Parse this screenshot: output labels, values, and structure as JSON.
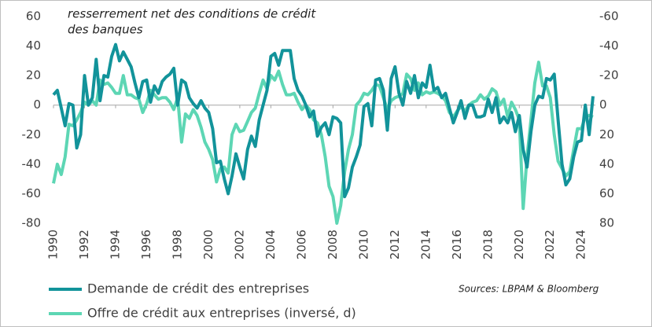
{
  "chart_data": {
    "type": "line",
    "annotation": [
      "resserrement net des conditions de crédit",
      "des banques"
    ],
    "source": "Sources: LBPAM & Bloomberg",
    "x": [
      1990,
      1990.25,
      1990.5,
      1990.75,
      1991,
      1991.25,
      1991.5,
      1991.75,
      1992,
      1992.25,
      1992.5,
      1992.75,
      1993,
      1993.25,
      1993.5,
      1993.75,
      1994,
      1994.25,
      1994.5,
      1994.75,
      1995,
      1995.25,
      1995.5,
      1995.75,
      1996,
      1996.25,
      1996.5,
      1996.75,
      1997,
      1997.25,
      1997.5,
      1997.75,
      1998,
      1998.25,
      1998.5,
      1998.75,
      1999,
      1999.25,
      1999.5,
      1999.75,
      2000,
      2000.25,
      2000.5,
      2000.75,
      2001,
      2001.25,
      2001.5,
      2001.75,
      2002,
      2002.25,
      2002.5,
      2002.75,
      2003,
      2003.25,
      2003.5,
      2003.75,
      2004,
      2004.25,
      2004.5,
      2004.75,
      2005,
      2005.25,
      2005.5,
      2005.75,
      2006,
      2006.25,
      2006.5,
      2006.75,
      2007,
      2007.25,
      2007.5,
      2007.75,
      2008,
      2008.25,
      2008.5,
      2008.75,
      2009,
      2009.25,
      2009.5,
      2009.75,
      2010,
      2010.25,
      2010.5,
      2010.75,
      2011,
      2011.25,
      2011.5,
      2011.75,
      2012,
      2012.25,
      2012.5,
      2012.75,
      2013,
      2013.25,
      2013.5,
      2013.75,
      2014,
      2014.25,
      2014.5,
      2014.75,
      2015,
      2015.25,
      2015.5,
      2015.75,
      2016,
      2016.25,
      2016.5,
      2016.75,
      2017,
      2017.25,
      2017.5,
      2017.75,
      2018,
      2018.25,
      2018.5,
      2018.75,
      2019,
      2019.25,
      2019.5,
      2019.75,
      2020,
      2020.25,
      2020.5,
      2020.75,
      2021,
      2021.25,
      2021.5,
      2021.75,
      2022,
      2022.25,
      2022.5,
      2022.75,
      2023,
      2023.25,
      2023.5,
      2023.75,
      2024,
      2024.25,
      2024.5,
      2024.75
    ],
    "series": [
      {
        "name": "Demande de crédit des entreprises",
        "color": "#12939a",
        "axis": "y",
        "values": [
          7,
          10,
          -2,
          -14,
          1,
          0,
          -29,
          -20,
          20,
          0,
          5,
          31,
          3,
          20,
          19,
          33,
          41,
          30,
          36,
          31,
          26,
          15,
          5,
          16,
          17,
          2,
          13,
          8,
          16,
          19,
          21,
          25,
          0,
          17,
          15,
          5,
          1,
          -2,
          3,
          -2,
          -5,
          -16,
          -39,
          -38,
          -50,
          -60,
          -48,
          -33,
          -42,
          -50,
          -30,
          -21,
          -28,
          -10,
          0,
          10,
          33,
          35,
          27,
          37,
          37,
          37,
          18,
          10,
          6,
          0,
          -8,
          -4,
          -21,
          -15,
          -12,
          -20,
          -8,
          -9,
          -12,
          -62,
          -56,
          -42,
          -35,
          -27,
          -1,
          1,
          -14,
          17,
          18,
          10,
          -17,
          18,
          26,
          8,
          0,
          16,
          8,
          20,
          5,
          15,
          12,
          27,
          10,
          12,
          5,
          8,
          -2,
          -12,
          -5,
          3,
          -9,
          0,
          0,
          -8,
          -8,
          -7,
          4,
          -5,
          5,
          -12,
          -8,
          -12,
          -5,
          -18,
          -7,
          -30,
          -42,
          -18,
          0,
          6,
          5,
          18,
          17,
          21,
          -10,
          -40,
          -54,
          -50,
          -35,
          -25,
          -24,
          0,
          -20,
          6
        ]
      },
      {
        "name": "Offre de crédit aux entreprises (inversé, d)",
        "color": "#5dd6b4",
        "axis": "y2",
        "values": [
          53,
          40,
          47,
          35,
          13,
          14,
          10,
          5,
          -2,
          0,
          -3,
          0,
          -17,
          -14,
          -15,
          -12,
          -8,
          -8,
          -20,
          -7,
          -7,
          -5,
          -4,
          5,
          -1,
          -10,
          -7,
          -4,
          -5,
          -5,
          -2,
          3,
          -5,
          25,
          6,
          9,
          3,
          7,
          15,
          25,
          30,
          37,
          52,
          43,
          42,
          46,
          20,
          13,
          18,
          17,
          11,
          5,
          2,
          -8,
          -17,
          -11,
          -20,
          -17,
          -23,
          -14,
          -7,
          -7,
          -8,
          -2,
          3,
          0,
          3,
          10,
          12,
          20,
          35,
          55,
          62,
          80,
          68,
          45,
          30,
          20,
          0,
          -3,
          -8,
          -7,
          -10,
          -14,
          -13,
          -5,
          3,
          -3,
          -5,
          -6,
          -8,
          -21,
          -18,
          -10,
          -15,
          -7,
          -9,
          -8,
          -9,
          -8,
          -6,
          -3,
          5,
          8,
          4,
          1,
          4,
          0,
          -2,
          -3,
          -7,
          -4,
          -6,
          -11,
          -9,
          0,
          -4,
          8,
          -2,
          3,
          10,
          70,
          35,
          10,
          -15,
          -29,
          -13,
          -13,
          -5,
          20,
          38,
          43,
          48,
          45,
          30,
          16,
          16,
          8,
          7,
          8
        ]
      }
    ],
    "xlim": [
      1990,
      2024.9
    ],
    "xticks": [
      1990,
      1992,
      1994,
      1996,
      1998,
      2000,
      2002,
      2004,
      2006,
      2008,
      2010,
      2012,
      2014,
      2016,
      2018,
      2020,
      2022,
      2024
    ],
    "ylim": [
      -80,
      60
    ],
    "yticks": [
      60,
      40,
      20,
      0,
      -20,
      -40,
      -60,
      -80
    ],
    "y2lim": [
      -60,
      80
    ],
    "y2_inverted": true,
    "y2ticks": [
      -60,
      -40,
      -20,
      0,
      20,
      40,
      60,
      80
    ]
  }
}
